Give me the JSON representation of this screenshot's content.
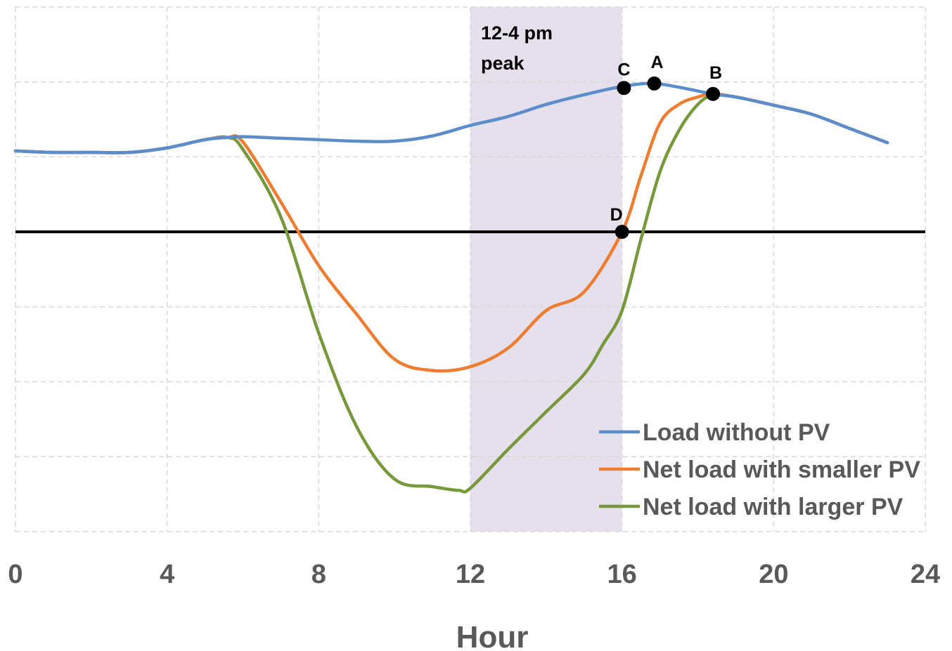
{
  "chart_data": {
    "type": "line",
    "title": "",
    "xlabel": "Hour",
    "ylabel": "",
    "xlim": [
      0,
      24
    ],
    "ylim": [
      -4,
      3
    ],
    "x_ticks": [
      "0",
      "4",
      "8",
      "12",
      "16",
      "20",
      "24"
    ],
    "grid": true,
    "zero_line": true,
    "legend_position": "bottom-right",
    "shaded_region": {
      "x": [
        12,
        16
      ],
      "label_line1": "12-4 pm",
      "label_line2": "peak",
      "color": "#e6e0ec"
    },
    "series": [
      {
        "name": "Load without PV",
        "color": "#5b8ccb",
        "x": [
          0,
          1,
          2,
          3,
          4,
          5,
          5.6,
          6,
          7,
          8,
          9,
          10,
          11,
          12,
          13,
          14,
          15,
          16,
          16.8,
          17.5,
          18.4,
          19,
          20,
          21,
          22,
          23
        ],
        "y": [
          1.08,
          1.06,
          1.06,
          1.06,
          1.12,
          1.23,
          1.26,
          1.27,
          1.25,
          1.23,
          1.21,
          1.21,
          1.28,
          1.42,
          1.54,
          1.7,
          1.83,
          1.94,
          1.98,
          1.93,
          1.84,
          1.8,
          1.69,
          1.57,
          1.38,
          1.19
        ]
      },
      {
        "name": "Net load with smaller PV",
        "color": "#ed7d31",
        "x": [
          0,
          1,
          2,
          3,
          4,
          5,
          5.6,
          6,
          7,
          8,
          9,
          10,
          11,
          12,
          13,
          14,
          15,
          16,
          16.5,
          17,
          17.5,
          18,
          18.4,
          19,
          20,
          21,
          22,
          23
        ],
        "y": [
          1.08,
          1.06,
          1.06,
          1.06,
          1.12,
          1.23,
          1.26,
          1.2,
          0.4,
          -0.45,
          -1.1,
          -1.7,
          -1.85,
          -1.8,
          -1.55,
          -1.05,
          -0.8,
          0.0,
          0.75,
          1.45,
          1.7,
          1.8,
          1.84,
          1.8,
          1.69,
          1.57,
          1.38,
          1.19
        ]
      },
      {
        "name": "Net load with larger PV",
        "color": "#77993c",
        "x": [
          0,
          1,
          2,
          3,
          4,
          5,
          5.6,
          6,
          7,
          8,
          9,
          10,
          11,
          11.7,
          12,
          13,
          14,
          15,
          15.5,
          16,
          16.5,
          17,
          17.5,
          18,
          18.4,
          19,
          20,
          21,
          22,
          23
        ],
        "y": [
          1.08,
          1.06,
          1.06,
          1.06,
          1.12,
          1.23,
          1.26,
          1.1,
          0.2,
          -1.35,
          -2.6,
          -3.3,
          -3.4,
          -3.45,
          -3.42,
          -2.9,
          -2.4,
          -1.9,
          -1.5,
          -1.05,
          -0.1,
          0.8,
          1.35,
          1.7,
          1.82,
          1.8,
          1.69,
          1.57,
          1.38,
          1.19
        ]
      }
    ],
    "points": [
      {
        "label": "A",
        "x": 16.85,
        "y": 1.98,
        "series": "Load without PV"
      },
      {
        "label": "B",
        "x": 18.4,
        "y": 1.84,
        "series": "Load without PV"
      },
      {
        "label": "C",
        "x": 16.05,
        "y": 1.92,
        "series": "Load without PV"
      },
      {
        "label": "D",
        "x": 16.0,
        "y": 0.0,
        "series": "Net load with smaller PV"
      }
    ]
  }
}
